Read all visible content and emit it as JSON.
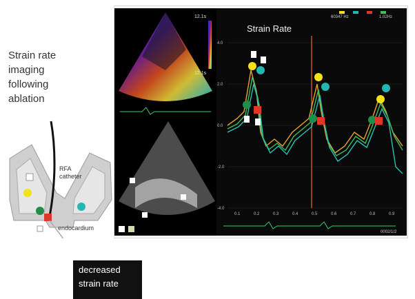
{
  "left": {
    "title_lines": [
      "Strain rate",
      "imaging",
      "following",
      "ablation"
    ],
    "catheter_label_lines": [
      "RFA",
      "catheter"
    ],
    "endocardium_label": "endocardium"
  },
  "callout": {
    "lines": [
      "decreased",
      "strain rate"
    ]
  },
  "echo_top": {
    "scale_top": "12.1s",
    "scale_bottom": "12.1s"
  },
  "graph": {
    "title": "Strain Rate",
    "header_texts": [
      "60347 Hz",
      "1.02Hz"
    ],
    "y_ticks": [
      "4.0",
      "2.0",
      "0.0",
      "-2.0",
      "-4.0"
    ],
    "x_ticks": [
      "0.1",
      "0.2",
      "0.3",
      "0.4",
      "0.5",
      "0.6",
      "0.7",
      "0.8",
      "0.9"
    ],
    "footer": "0002/1/2"
  },
  "colors": {
    "yellow": "#f2e21a",
    "teal": "#22b7b0",
    "red": "#e0362a",
    "green": "#1f8e4a",
    "trace_orange": "#e6a532",
    "trace_green": "#3fbf5a",
    "trace_teal": "#26c3b3"
  }
}
